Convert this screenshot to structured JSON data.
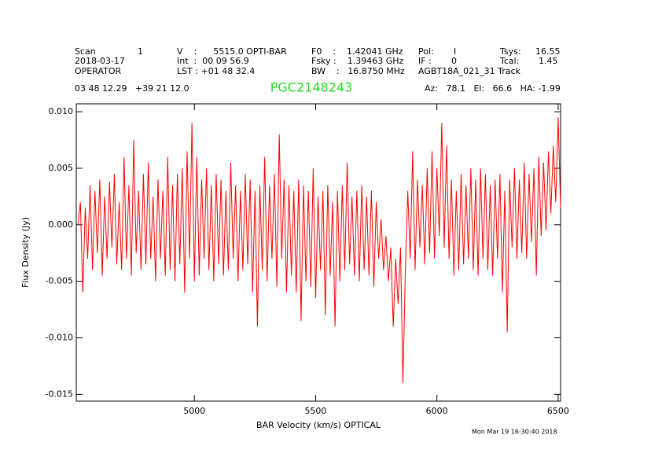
{
  "header": {
    "scan_label": "Scan",
    "scan": "1",
    "date": "2018-03-17",
    "observer": "OPERATOR",
    "v": "V    :      5515.0 OPTI-BAR",
    "int": "Int  :  00 09 56.9",
    "lst": "LST : +01 48 32.4",
    "f0": "F0    :    1.42041 GHz",
    "fsky": "Fsky :    1.39463 GHz",
    "bw": "BW    :   16.8750 MHz",
    "pol_label": "Pol:",
    "pol": "I",
    "if_label": "IF :",
    "if": "0",
    "project": "AGBT18A_021_31 Track",
    "tsys_label": "Tsys:",
    "tsys": "16.55",
    "tcal_label": "Tcal:",
    "tcal": "1.45",
    "coords": "03 48 12.29   +39 21 12.0",
    "azel": "Az:   78.1   El:   66.6   HA: -1.99"
  },
  "footer": "Mon Mar 19 16:30:40 2018",
  "chart_data": {
    "type": "line",
    "title": "PGC2148243",
    "xlabel": "BAR Velocity (km/s) OPTICAL",
    "ylabel": "Flux Density (Jy)",
    "color": "#ff0000",
    "xlim": [
      4513,
      6510
    ],
    "ylim": [
      -0.0156,
      0.0107
    ],
    "xticks": [
      5000,
      5500,
      6000,
      6500
    ],
    "yticks": [
      {
        "value": 0.01,
        "label": "0.010"
      },
      0.005,
      {
        "value": 0,
        "label": "0.000"
      },
      -0.005,
      {
        "value": -0.01,
        "label": "-0.010"
      },
      -0.015
    ],
    "x": [
      4520,
      4530,
      4540,
      4550,
      4560,
      4570,
      4580,
      4590,
      4600,
      4610,
      4620,
      4630,
      4640,
      4650,
      4660,
      4670,
      4680,
      4690,
      4700,
      4710,
      4720,
      4730,
      4740,
      4750,
      4760,
      4770,
      4780,
      4790,
      4800,
      4810,
      4820,
      4830,
      4840,
      4850,
      4860,
      4870,
      4880,
      4890,
      4900,
      4910,
      4920,
      4930,
      4940,
      4950,
      4960,
      4970,
      4980,
      4990,
      5000,
      5010,
      5020,
      5030,
      5040,
      5050,
      5060,
      5070,
      5080,
      5090,
      5100,
      5110,
      5120,
      5130,
      5140,
      5150,
      5160,
      5170,
      5180,
      5190,
      5200,
      5210,
      5220,
      5230,
      5240,
      5250,
      5260,
      5270,
      5280,
      5290,
      5300,
      5310,
      5320,
      5330,
      5340,
      5350,
      5360,
      5370,
      5380,
      5390,
      5400,
      5410,
      5420,
      5430,
      5440,
      5450,
      5460,
      5470,
      5480,
      5490,
      5500,
      5510,
      5520,
      5530,
      5540,
      5550,
      5560,
      5570,
      5580,
      5590,
      5600,
      5610,
      5620,
      5630,
      5640,
      5650,
      5660,
      5670,
      5680,
      5690,
      5700,
      5710,
      5720,
      5730,
      5740,
      5750,
      5760,
      5770,
      5780,
      5790,
      5800,
      5810,
      5820,
      5830,
      5840,
      5850,
      5860,
      5870,
      5880,
      5890,
      5900,
      5910,
      5920,
      5930,
      5940,
      5950,
      5960,
      5970,
      5980,
      5990,
      6000,
      6010,
      6020,
      6030,
      6040,
      6050,
      6060,
      6070,
      6080,
      6090,
      6100,
      6110,
      6120,
      6130,
      6140,
      6150,
      6160,
      6170,
      6180,
      6190,
      6200,
      6210,
      6220,
      6230,
      6240,
      6250,
      6260,
      6270,
      6280,
      6290,
      6300,
      6310,
      6320,
      6330,
      6340,
      6350,
      6360,
      6370,
      6380,
      6390,
      6400,
      6410,
      6420,
      6430,
      6440,
      6450,
      6460,
      6470,
      6480,
      6490,
      6500,
      6510
    ],
    "values": [
      0.0,
      0.002,
      -0.006,
      0.0015,
      -0.003,
      0.0035,
      -0.004,
      0.003,
      -0.0025,
      0.004,
      -0.0045,
      0.0025,
      -0.003,
      0.0038,
      -0.002,
      0.0045,
      -0.0035,
      0.002,
      -0.004,
      0.006,
      -0.003,
      0.0035,
      -0.0045,
      0.0075,
      -0.0025,
      0.003,
      -0.004,
      0.0045,
      -0.0035,
      0.0055,
      -0.003,
      0.0025,
      -0.005,
      0.004,
      -0.003,
      0.003,
      -0.0045,
      0.006,
      -0.004,
      0.0035,
      -0.005,
      0.0045,
      -0.0035,
      0.005,
      -0.006,
      0.0065,
      -0.003,
      0.009,
      -0.005,
      0.006,
      -0.0045,
      0.004,
      -0.003,
      0.005,
      -0.004,
      0.0035,
      -0.005,
      0.0045,
      -0.0035,
      0.004,
      -0.0045,
      0.003,
      -0.004,
      0.0055,
      -0.003,
      0.0035,
      -0.005,
      0.003,
      -0.004,
      0.0045,
      -0.0035,
      0.004,
      -0.006,
      0.003,
      -0.009,
      0.0035,
      -0.004,
      0.006,
      -0.005,
      0.0035,
      -0.003,
      0.0045,
      -0.0055,
      0.008,
      -0.003,
      0.004,
      -0.006,
      0.0035,
      -0.0045,
      0.003,
      -0.006,
      0.004,
      -0.0085,
      0.0035,
      -0.005,
      0.003,
      -0.0055,
      0.005,
      -0.0065,
      0.0025,
      -0.004,
      0.003,
      -0.008,
      0.0035,
      -0.0045,
      0.002,
      -0.009,
      0.003,
      -0.005,
      0.0035,
      -0.004,
      0.0055,
      -0.0035,
      0.0025,
      -0.0045,
      0.003,
      -0.005,
      0.0035,
      -0.004,
      0.0025,
      -0.0045,
      0.003,
      -0.0055,
      0.002,
      -0.003,
      0.0005,
      -0.004,
      -0.001,
      -0.005,
      -0.002,
      -0.009,
      -0.003,
      -0.007,
      -0.002,
      -0.014,
      -0.004,
      0.003,
      -0.003,
      0.0065,
      -0.004,
      0.004,
      -0.002,
      0.0035,
      -0.0035,
      0.005,
      -0.0025,
      0.0065,
      -0.003,
      0.005,
      -0.001,
      0.009,
      -0.002,
      0.007,
      -0.003,
      0.004,
      -0.0045,
      0.003,
      -0.004,
      0.0045,
      -0.0035,
      0.0035,
      -0.003,
      0.005,
      -0.004,
      0.004,
      -0.0045,
      0.005,
      -0.003,
      0.0045,
      -0.004,
      0.0035,
      -0.0045,
      0.004,
      -0.003,
      0.0045,
      -0.006,
      0.003,
      -0.0095,
      0.004,
      -0.002,
      0.005,
      -0.003,
      0.004,
      -0.0025,
      0.0055,
      -0.003,
      0.0045,
      -0.0015,
      0.005,
      -0.0045,
      0.006,
      -0.001,
      0.0055,
      -0.0005,
      0.0065,
      0.001,
      0.007,
      0.002,
      0.0095,
      0.0015
    ]
  }
}
